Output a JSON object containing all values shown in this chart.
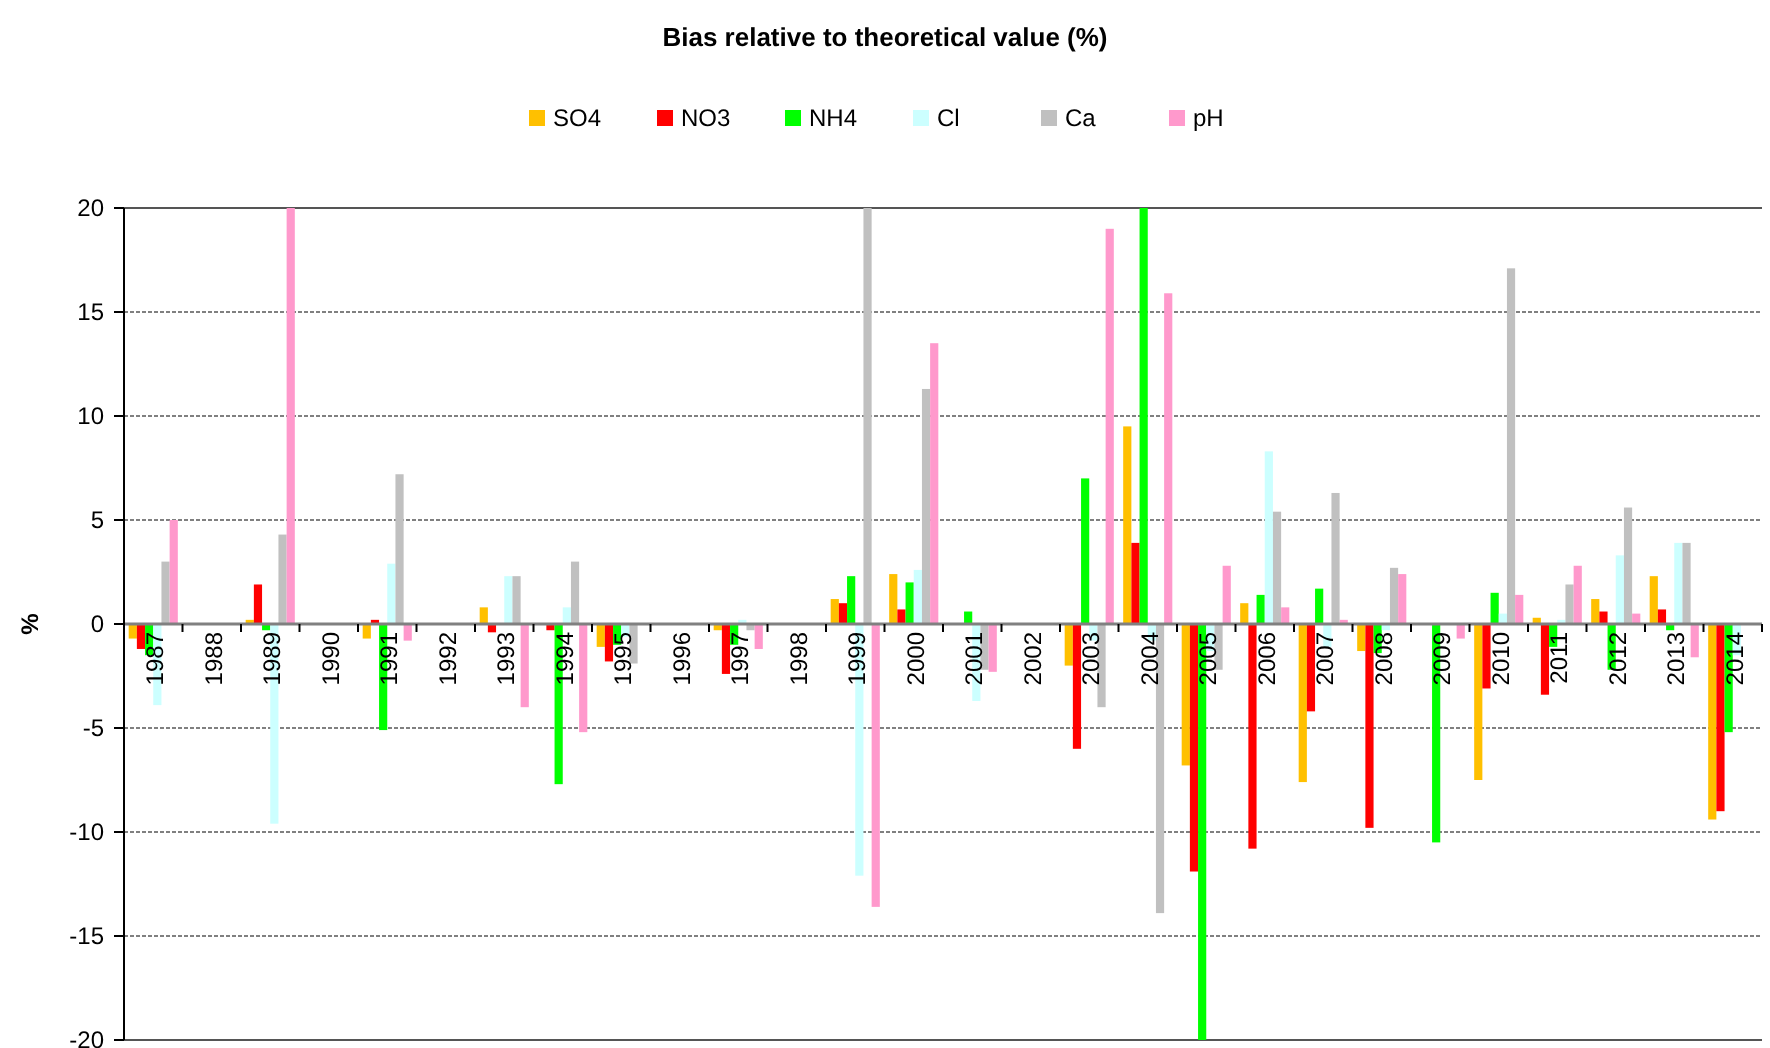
{
  "chart_data": {
    "type": "bar",
    "title": "Bias relative to theoretical value (%)",
    "ylabel": "%",
    "categories": [
      "1987",
      "1988",
      "1989",
      "1990",
      "1991",
      "1992",
      "1993",
      "1994",
      "1995",
      "1996",
      "1997",
      "1998",
      "1999",
      "2000",
      "2001",
      "2002",
      "2003",
      "2004",
      "2005",
      "2006",
      "2007",
      "2008",
      "2009",
      "2010",
      "2011",
      "2012",
      "2013",
      "2014"
    ],
    "series": [
      {
        "name": "SO4",
        "color": "#ffc000",
        "values": [
          -0.7,
          null,
          0.2,
          null,
          -0.7,
          null,
          0.8,
          null,
          -1.1,
          null,
          -0.3,
          null,
          1.2,
          2.4,
          null,
          null,
          -2.0,
          9.5,
          -6.8,
          1.0,
          -7.6,
          -1.3,
          null,
          -7.5,
          0.3,
          1.2,
          2.3,
          -9.4
        ]
      },
      {
        "name": "NO3",
        "color": "#ff0000",
        "values": [
          -1.2,
          null,
          1.9,
          null,
          0.2,
          null,
          -0.4,
          -0.3,
          -1.8,
          null,
          -2.4,
          null,
          1.0,
          0.7,
          null,
          null,
          -6.0,
          3.9,
          -11.9,
          -10.8,
          -4.2,
          -9.8,
          null,
          -3.1,
          -3.4,
          0.6,
          0.7,
          -9.0
        ]
      },
      {
        "name": "NH4",
        "color": "#00ff00",
        "values": [
          -1.5,
          null,
          -0.3,
          null,
          -5.1,
          null,
          null,
          -7.7,
          -1.0,
          null,
          -1.0,
          null,
          2.3,
          2.0,
          0.6,
          null,
          7.0,
          20,
          -20,
          1.4,
          1.7,
          -1.4,
          -10.5,
          1.5,
          -1.1,
          -2.2,
          -0.3,
          -5.2
        ]
      },
      {
        "name": "Cl",
        "color": "#ccffff",
        "values": [
          -3.9,
          null,
          -9.6,
          null,
          2.9,
          null,
          2.3,
          0.8,
          -0.6,
          null,
          0.2,
          null,
          -12.1,
          2.6,
          -3.7,
          null,
          -0.8,
          -0.8,
          -1.3,
          8.3,
          -1.1,
          -0.3,
          null,
          0.5,
          0.2,
          3.3,
          3.9,
          -1.5
        ]
      },
      {
        "name": "Ca",
        "color": "#c0c0c0",
        "values": [
          3.0,
          null,
          4.3,
          null,
          7.2,
          null,
          2.3,
          3.0,
          -1.9,
          null,
          -0.3,
          null,
          20,
          11.3,
          -2.2,
          null,
          -4.0,
          -13.9,
          -2.2,
          5.4,
          6.3,
          2.7,
          null,
          17.1,
          1.9,
          5.6,
          3.9,
          null
        ]
      },
      {
        "name": "pH",
        "color": "#ff99cc",
        "values": [
          5.0,
          null,
          20,
          null,
          -0.8,
          null,
          -4.0,
          -5.2,
          null,
          null,
          -1.2,
          null,
          -13.6,
          13.5,
          -2.3,
          null,
          19.0,
          15.9,
          2.8,
          0.8,
          0.2,
          2.4,
          -0.7,
          1.4,
          2.8,
          0.5,
          -1.6,
          null
        ]
      }
    ],
    "ylim": [
      -20,
      20
    ],
    "yticks": [
      -20,
      -15,
      -10,
      -5,
      0,
      5,
      10,
      15,
      20
    ],
    "grid": "y",
    "legend": "top"
  }
}
